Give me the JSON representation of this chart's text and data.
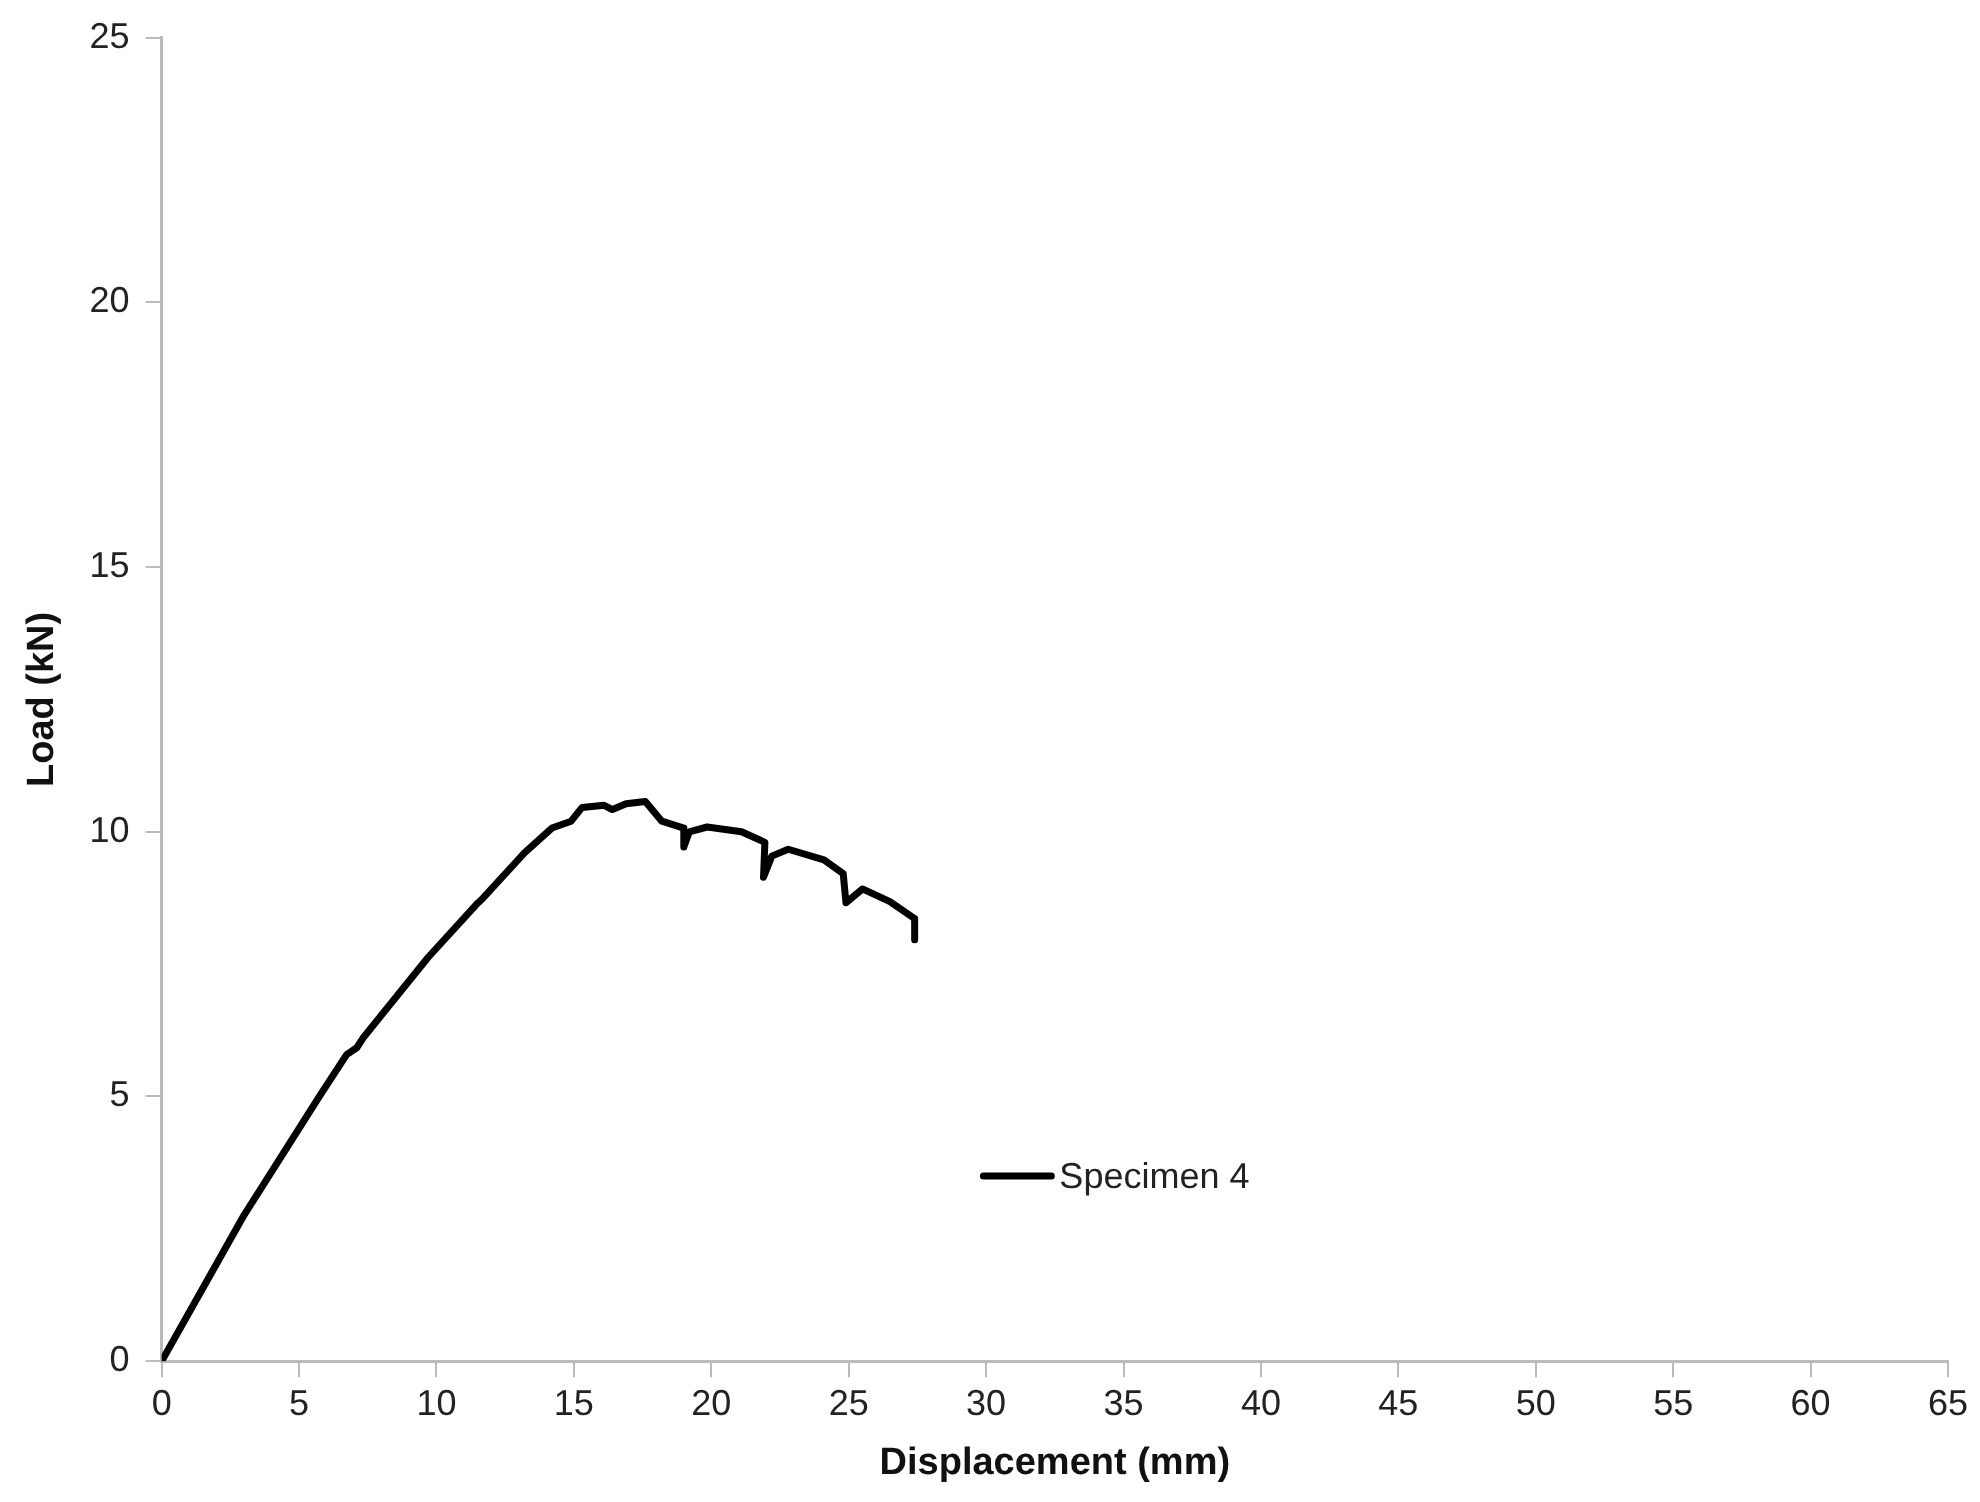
{
  "chart_data": {
    "type": "line",
    "xlabel": "Displacement (mm)",
    "ylabel": "Load (kN)",
    "xlim": [
      0,
      65
    ],
    "xticks": [
      0,
      5,
      10,
      15,
      20,
      25,
      30,
      35,
      40,
      45,
      50,
      55,
      60,
      65
    ],
    "ylim": [
      0,
      25
    ],
    "yticks": [
      0,
      5,
      10,
      15,
      20,
      25
    ],
    "grid": false,
    "legend": "center",
    "marker": "none",
    "line_style": "solid",
    "x": [
      0,
      3.0,
      5.74,
      6.73,
      7.1,
      7.35,
      9.7,
      11.44,
      11.7,
      13.2,
      14.2,
      14.9,
      15.3,
      16.1,
      16.4,
      16.9,
      17.6,
      18.2,
      19.0,
      19.0,
      19.2,
      19.85,
      21.1,
      21.95,
      21.9,
      22.2,
      22.8,
      24.1,
      24.8,
      24.9,
      25.5,
      26.5,
      27.4,
      27.4
    ],
    "series": [
      {
        "name": "Specimen 4",
        "color": "#000000",
        "values": [
          0,
          2.76,
          5.0,
          5.79,
          5.92,
          6.12,
          7.63,
          8.62,
          8.75,
          9.6,
          10.07,
          10.2,
          10.46,
          10.5,
          10.42,
          10.53,
          10.57,
          10.2,
          10.07,
          9.71,
          10.0,
          10.09,
          10.0,
          9.8,
          9.14,
          9.54,
          9.67,
          9.47,
          9.21,
          8.66,
          8.92,
          8.68,
          8.36,
          7.96
        ]
      }
    ]
  }
}
